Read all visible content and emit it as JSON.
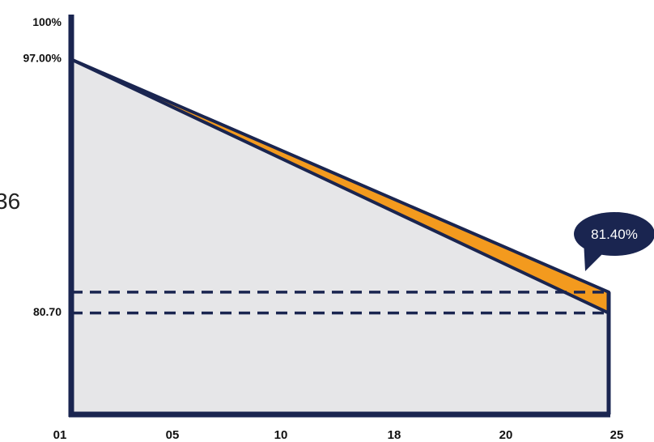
{
  "chart_data": {
    "type": "area",
    "x_ticks": [
      "01",
      "05",
      "10",
      "18",
      "20",
      "25"
    ],
    "x": [
      1,
      25
    ],
    "y_tick_labels": [
      "100%",
      "97.00%",
      "80.70"
    ],
    "y_ticks": [
      100,
      97,
      80.7
    ],
    "ylim": [
      73.2,
      100
    ],
    "grid": false,
    "series": [
      {
        "values": [
          97.0,
          81.4
        ],
        "color": "#1a2550"
      },
      {
        "values": [
          97.0,
          80.0
        ],
        "color": "#1a2550"
      }
    ],
    "band_fill_color": "#f39a1e",
    "area_fill_color": "#e6e6e8",
    "reference_lines": [
      81.4,
      80.0
    ],
    "callout": {
      "text": "81.40%",
      "color": "#1a2550"
    },
    "partial_side_text": "36"
  }
}
